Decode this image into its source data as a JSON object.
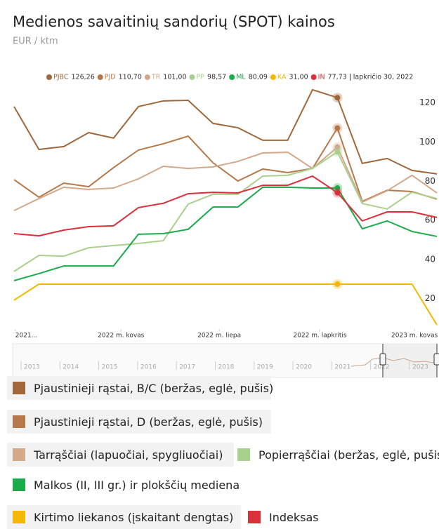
{
  "chart_data": {
    "type": "line",
    "title": "Medienos savaitinių sandorių (SPOT) kainos",
    "subtitle": "EUR / ktm",
    "tooltip_date": "lapkričio 30, 2022",
    "x": [
      0,
      1,
      2,
      3,
      4,
      5,
      6,
      7,
      8,
      9,
      10,
      11,
      12,
      13,
      14,
      15,
      16,
      17
    ],
    "xlim": [
      0,
      17
    ],
    "xticks": [
      {
        "value": 0.05,
        "label": "2021..."
      },
      {
        "value": 4.3,
        "label": "2022 m. kovas"
      },
      {
        "value": 8.25,
        "label": "2022 m. liepa"
      },
      {
        "value": 12.3,
        "label": "2022 m. lapkritis"
      },
      {
        "value": 16.1,
        "label": "2023 m. kovas"
      }
    ],
    "ylim": [
      8,
      134
    ],
    "yticks": [
      20,
      40,
      60,
      80,
      100,
      120
    ],
    "grid": false,
    "navigator_labels": [
      "2013",
      "2014",
      "2015",
      "2016",
      "2017",
      "2018",
      "2019",
      "2020",
      "2021",
      "2022",
      "2023"
    ],
    "series": [
      {
        "name": "Pjaustinieji rąstai, B/C (beržas, eglė, pušis)",
        "short": "PJBC",
        "color": "#a0673a",
        "values": [
          121.7,
          99.8,
          101.3,
          108.4,
          105.6,
          121.7,
          124.6,
          124.9,
          113.1,
          110.9,
          104.5,
          104.5,
          130.3,
          126.26,
          92.7,
          95.2,
          89.1,
          87.3
        ],
        "value_labels": [
          null,
          null,
          null,
          null,
          null,
          null,
          null,
          null,
          null,
          null,
          null,
          null,
          null,
          "126,26",
          null,
          null,
          null,
          null
        ]
      },
      {
        "name": "Pjaustinieji rąstai, D (beržas, eglė, pušis)",
        "short": "PJD",
        "color": "#b5784a",
        "values": [
          84.4,
          75.4,
          82.6,
          80.8,
          90.5,
          99.5,
          102.7,
          106.6,
          93.0,
          83.7,
          89.8,
          88.0,
          90.1,
          110.7,
          73.3,
          79.0,
          78.3,
          74.4
        ],
        "value_labels": [
          null,
          null,
          null,
          null,
          null,
          null,
          null,
          null,
          null,
          null,
          null,
          null,
          null,
          "110,70",
          null,
          null,
          null,
          null
        ]
      },
      {
        "name": "Tarrąščiai (lapuočiai, spygliuočiai)",
        "short": "TR",
        "color": "#d4a88a",
        "values": [
          68.6,
          74.7,
          80.5,
          79.4,
          80.1,
          84.8,
          91.2,
          90.1,
          90.9,
          93.7,
          98.0,
          98.4,
          90.1,
          101.0,
          72.9,
          78.7,
          86.6,
          77.6
        ],
        "value_labels": [
          null,
          null,
          null,
          null,
          null,
          null,
          null,
          null,
          null,
          null,
          null,
          null,
          null,
          "101,00",
          null,
          null,
          null,
          null
        ]
      },
      {
        "name": "Popierrąščiai (beržas, eglė, pušis)",
        "short": "PP",
        "color": "#a9d18e",
        "values": [
          37.5,
          45.7,
          45.3,
          49.6,
          50.7,
          51.8,
          53.2,
          71.9,
          76.9,
          76.9,
          86.2,
          86.6,
          90.1,
          98.57,
          72.2,
          69.4,
          78.0,
          74.7
        ],
        "value_labels": [
          null,
          null,
          null,
          null,
          null,
          null,
          null,
          null,
          null,
          null,
          null,
          null,
          null,
          "98,57",
          null,
          null,
          null,
          null
        ]
      },
      {
        "name": "Malkos (II, III gr.) ir plokščių mediena",
        "short": "ML",
        "color": "#1aab4a",
        "values": [
          32.8,
          36.4,
          40.3,
          40.3,
          40.3,
          56.5,
          56.8,
          59.0,
          70.4,
          70.4,
          80.5,
          80.5,
          80.1,
          80.09,
          59.3,
          63.3,
          57.9,
          55.4
        ],
        "value_labels": [
          null,
          null,
          null,
          null,
          null,
          null,
          null,
          null,
          null,
          null,
          null,
          null,
          null,
          "80,09",
          null,
          null,
          null,
          null
        ]
      },
      {
        "name": "Kirtimo liekanos (įskaitant dengtas)",
        "short": "KA",
        "color": "#f5b800",
        "values": [
          22.8,
          31.0,
          31.0,
          31.0,
          31.0,
          31.0,
          31.0,
          31.0,
          31.0,
          31.0,
          31.0,
          31.0,
          31.0,
          31.0,
          31.0,
          31.0,
          31.0,
          10.2
        ],
        "value_labels": [
          null,
          null,
          null,
          null,
          null,
          null,
          null,
          null,
          null,
          null,
          null,
          null,
          null,
          "31,00",
          null,
          null,
          null,
          null
        ]
      },
      {
        "name": "Indeksas",
        "short": "IN",
        "color": "#d9303a",
        "values": [
          56.8,
          55.7,
          58.6,
          60.4,
          60.8,
          70.1,
          72.3,
          77.2,
          77.9,
          77.6,
          81.5,
          81.5,
          86.2,
          77.73,
          63.3,
          67.9,
          67.9,
          65.1
        ],
        "value_labels": [
          null,
          null,
          null,
          null,
          null,
          null,
          null,
          null,
          null,
          null,
          null,
          null,
          null,
          "77,73",
          null,
          null,
          null,
          null
        ]
      }
    ]
  }
}
